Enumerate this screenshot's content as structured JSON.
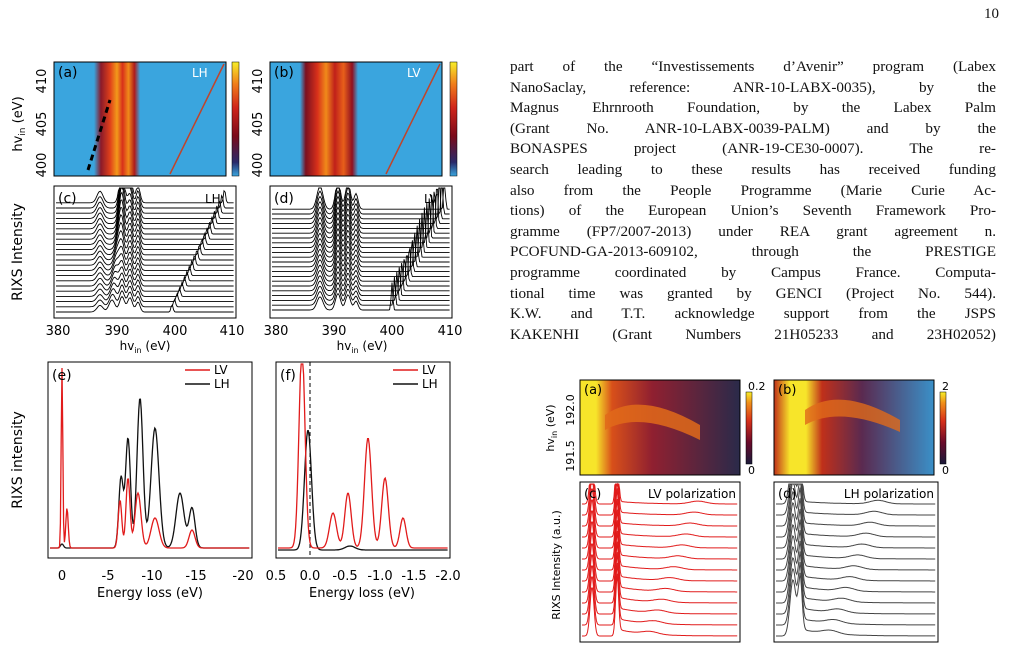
{
  "page_number": "10",
  "body_lines": [
    "part of the “Investissements d’Avenir” program (Labex",
    "NanoSaclay, reference:  ANR-10-LABX-0035), by the",
    "Magnus Ehrnrooth Foundation, by the Labex Palm",
    "(Grant No.  ANR-10-LABX-0039-PALM) and by the",
    "BONASPES project (ANR-19-CE30-0007).   The re-",
    "search leading to these results has received funding",
    "also from the People Programme (Marie Curie Ac-",
    "tions) of the European Union’s Seventh Framework Pro-",
    "gramme (FP7/2007-2013) under REA grant agreement n.",
    "PCOFUND-GA-2013-609102, through the PRESTIGE",
    "programme coordinated by Campus France. Computa-",
    "tional time was granted by GENCI (Project No.  544).",
    "K.W. and T.T. acknowledge support from the JSPS",
    "KAKENHI (Grant Numbers 21H05233 and 23H02052)"
  ],
  "left_figure": {
    "panel_a": {
      "label": "(a)",
      "tag": "LH"
    },
    "panel_b": {
      "label": "(b)",
      "tag": "LV"
    },
    "panel_c": {
      "label": "(c)",
      "tag": "LH"
    },
    "panel_d": {
      "label": "(d)",
      "tag": "LV"
    },
    "panel_e": {
      "label": "(e)"
    },
    "panel_f": {
      "label": "(f)"
    },
    "map_yticks": [
      "410",
      "405",
      "400"
    ],
    "map_ylabel_main": "hv",
    "map_ylabel_sub": "in",
    "map_ylabel_unit": " (eV)",
    "rixs_ylabel": "RIXS Intensity",
    "rixs_xticks": [
      "380",
      "390",
      "400",
      "410"
    ],
    "rixs_xlabel_main": "hv",
    "rixs_xlabel_sub": "in",
    "rixs_xlabel_unit": " (eV)",
    "spec_ylabel": "RIXS intensity",
    "e_xticks": [
      "0",
      "-5",
      "-10",
      "-15",
      "-20"
    ],
    "f_xticks": [
      "0.5",
      "0.0",
      "-0.5",
      "-1.0",
      "-1.5",
      "-2.0"
    ],
    "spec_xlabel": "Energy loss (eV)",
    "legend": [
      {
        "name": "LV",
        "color": "#e11b1b"
      },
      {
        "name": "LH",
        "color": "#111111"
      }
    ]
  },
  "right_figure": {
    "panel_a": {
      "label": "(a)",
      "cbar_max": "0.2",
      "cbar_min": "0"
    },
    "panel_b": {
      "label": "(b)",
      "cbar_max": "2",
      "cbar_min": "0"
    },
    "panel_c": {
      "label": "(c)",
      "title": "LV polarization"
    },
    "panel_d": {
      "label": "(d)",
      "title": "LH polarization"
    },
    "map_yticks": [
      "192.0",
      "191.5"
    ],
    "map_ylabel_main": "hv",
    "map_ylabel_sub": "in",
    "map_ylabel_unit": " (eV)",
    "spec_ylabel": "RIXS Intensity (a.u.)"
  },
  "colors": {
    "red": "#e11b1b",
    "black": "#111111",
    "map_bg": "#3aa5de",
    "map_hot": "#f3d52a"
  }
}
